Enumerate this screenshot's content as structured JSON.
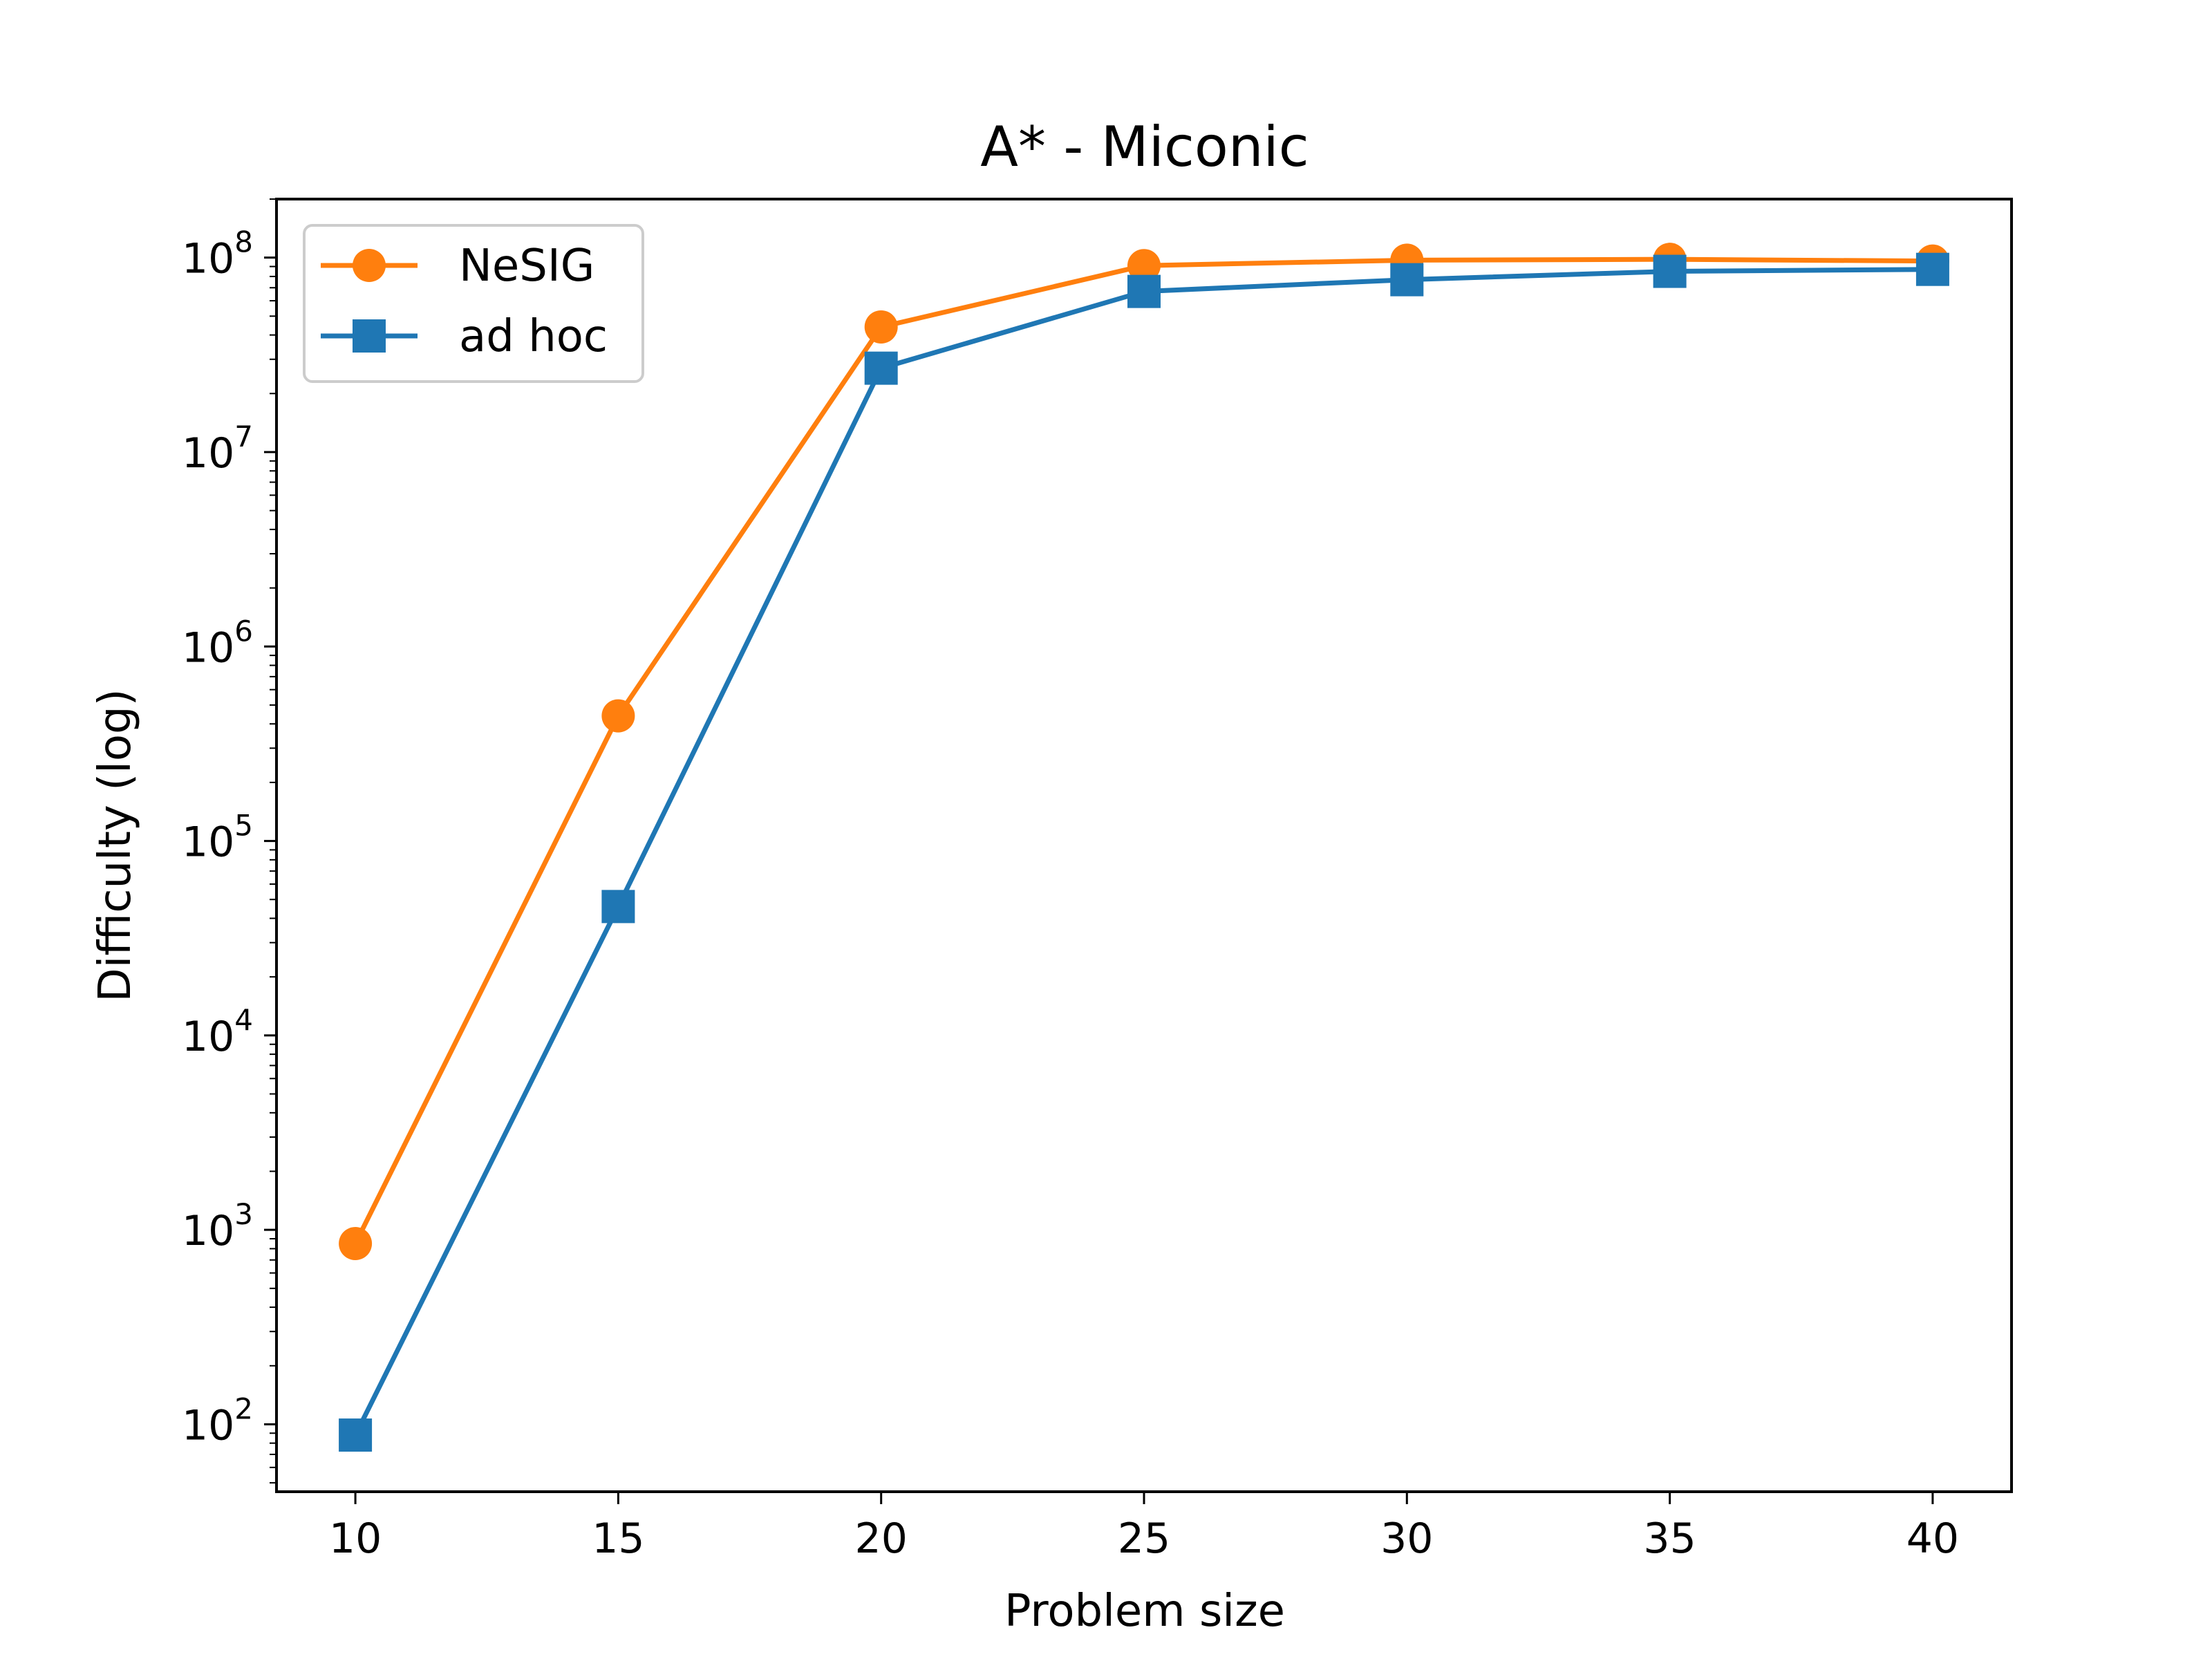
{
  "chart_data": {
    "type": "line",
    "title": "A* - Miconic",
    "xlabel": "Problem size",
    "ylabel": "Difficulty (log)",
    "yscale": "log",
    "x": [
      10,
      15,
      20,
      25,
      30,
      35,
      40
    ],
    "xticks": [
      "10",
      "15",
      "20",
      "25",
      "30",
      "35",
      "40"
    ],
    "xlim": [
      8.5,
      41.5
    ],
    "ylim": [
      45,
      200000000
    ],
    "yticks": [
      {
        "base": "10",
        "exp": "2",
        "value": 100
      },
      {
        "base": "10",
        "exp": "3",
        "value": 1000
      },
      {
        "base": "10",
        "exp": "4",
        "value": 10000
      },
      {
        "base": "10",
        "exp": "5",
        "value": 100000
      },
      {
        "base": "10",
        "exp": "6",
        "value": 1000000
      },
      {
        "base": "10",
        "exp": "7",
        "value": 10000000
      },
      {
        "base": "10",
        "exp": "8",
        "value": 100000000
      }
    ],
    "grid": false,
    "legend_position": "upper-left",
    "series": [
      {
        "name": "NeSIG",
        "marker": "circle",
        "color": "#ff7f0e",
        "values": [
          850,
          440000,
          44000000,
          91000000,
          97000000,
          98000000,
          96000000
        ]
      },
      {
        "name": "ad hoc",
        "marker": "square",
        "color": "#1f77b4",
        "values": [
          88,
          46000,
          27000000,
          67000000,
          77000000,
          85000000,
          87000000
        ]
      }
    ]
  }
}
